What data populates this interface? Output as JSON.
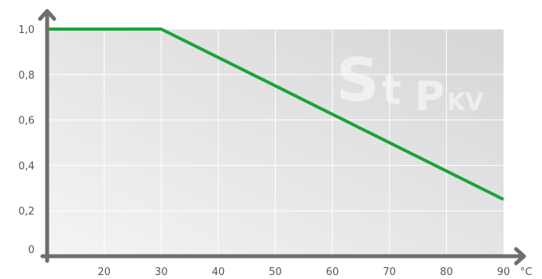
{
  "chart_data": {
    "type": "line",
    "x_unit": "°C",
    "x_ticks": [
      "20",
      "30",
      "40",
      "50",
      "60",
      "70",
      "80",
      "90"
    ],
    "y_ticks": [
      "0",
      "0,2",
      "0,4",
      "0,6",
      "0,8",
      "1,0"
    ],
    "xlim": [
      10,
      90
    ],
    "ylim": [
      0,
      1.0
    ],
    "grid": true,
    "series": [
      {
        "color": "#1aa33a",
        "x": [
          10,
          30,
          90
        ],
        "y": [
          1.0,
          1.0,
          0.25
        ]
      }
    ]
  },
  "watermark": {
    "big": "S",
    "mid": "t",
    "p": "P",
    "sub": "KV"
  }
}
